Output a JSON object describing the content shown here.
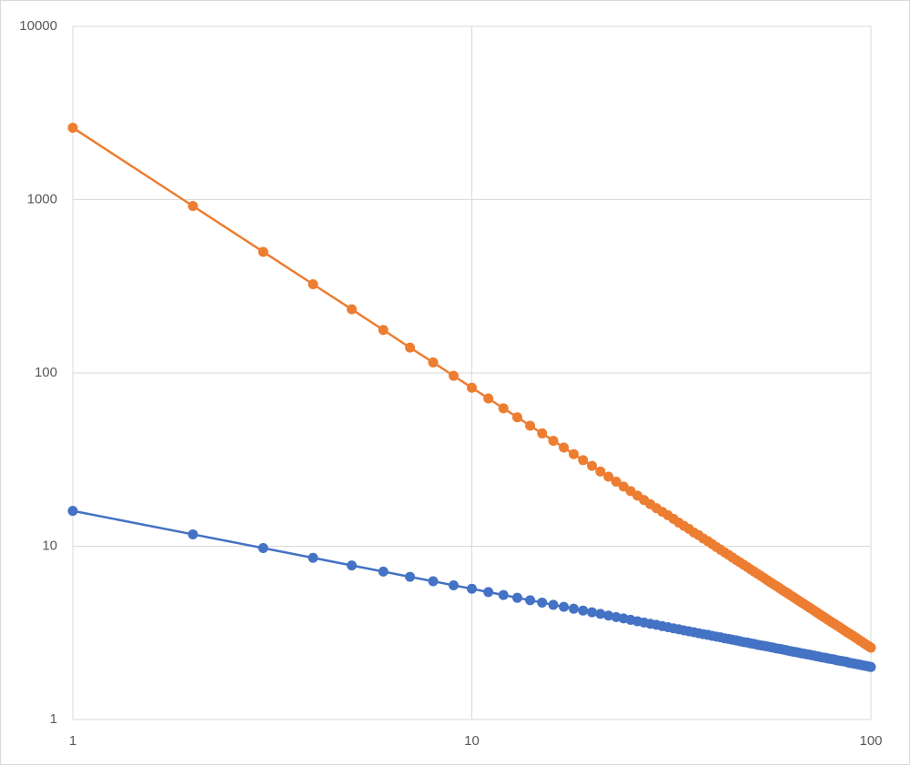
{
  "chart_data": {
    "type": "line",
    "xscale": "log",
    "yscale": "log",
    "grid": true,
    "markers": true,
    "xlim": [
      1,
      100
    ],
    "xticks": [
      1,
      10,
      100
    ],
    "ylim": [
      1,
      10000
    ],
    "yticks": [
      1,
      10,
      100,
      1000,
      10000
    ],
    "x": [
      1,
      2,
      3,
      4,
      5,
      6,
      7,
      8,
      9,
      10,
      11,
      12,
      13,
      14,
      15,
      16,
      17,
      18,
      19,
      20,
      21,
      22,
      23,
      24,
      25,
      26,
      27,
      28,
      29,
      30,
      31,
      32,
      33,
      34,
      35,
      36,
      37,
      38,
      39,
      40,
      41,
      42,
      43,
      44,
      45,
      46,
      47,
      48,
      49,
      50,
      51,
      52,
      53,
      54,
      55,
      56,
      57,
      58,
      59,
      60,
      61,
      62,
      63,
      64,
      65,
      66,
      67,
      68,
      69,
      70,
      71,
      72,
      73,
      74,
      75,
      76,
      77,
      78,
      79,
      80,
      81,
      82,
      83,
      84,
      85,
      86,
      87,
      88,
      89,
      90,
      91,
      92,
      93,
      94,
      95,
      96,
      97,
      98,
      99,
      100
    ],
    "series": [
      {
        "color": "#4472c4",
        "values": [
          16,
          11.71,
          9.76,
          8.57,
          7.75,
          7.14,
          6.66,
          6.28,
          5.95,
          5.68,
          5.44,
          5.23,
          5.04,
          4.88,
          4.73,
          4.59,
          4.47,
          4.36,
          4.25,
          4.16,
          4.07,
          3.98,
          3.9,
          3.83,
          3.76,
          3.69,
          3.63,
          3.57,
          3.52,
          3.46,
          3.41,
          3.36,
          3.32,
          3.27,
          3.23,
          3.19,
          3.15,
          3.11,
          3.08,
          3.04,
          3.01,
          2.98,
          2.94,
          2.92,
          2.89,
          2.86,
          2.83,
          2.8,
          2.78,
          2.75,
          2.73,
          2.7,
          2.68,
          2.66,
          2.64,
          2.62,
          2.6,
          2.57,
          2.56,
          2.54,
          2.52,
          2.5,
          2.48,
          2.46,
          2.45,
          2.43,
          2.41,
          2.4,
          2.38,
          2.37,
          2.35,
          2.34,
          2.32,
          2.31,
          2.29,
          2.28,
          2.27,
          2.25,
          2.24,
          2.23,
          2.22,
          2.2,
          2.19,
          2.18,
          2.17,
          2.16,
          2.15,
          2.13,
          2.12,
          2.11,
          2.1,
          2.09,
          2.08,
          2.07,
          2.06,
          2.05,
          2.04,
          2.03,
          2.02,
          2.01
        ]
      },
      {
        "color": "#ed7d31",
        "values": [
          2600,
          919,
          500,
          325,
          233,
          177,
          140,
          115,
          96.3,
          82.2,
          71.3,
          62.5,
          55.5,
          49.6,
          44.8,
          40.6,
          37.1,
          34.0,
          31.4,
          29.1,
          27.0,
          25.2,
          23.6,
          22.1,
          20.8,
          19.6,
          18.5,
          17.5,
          16.6,
          15.8,
          15.1,
          14.4,
          13.7,
          13.1,
          12.6,
          12.0,
          11.6,
          11.1,
          10.7,
          10.3,
          9.9,
          9.55,
          9.22,
          8.91,
          8.61,
          8.33,
          8.07,
          7.82,
          7.58,
          7.35,
          7.14,
          6.93,
          6.74,
          6.55,
          6.37,
          6.2,
          6.04,
          5.89,
          5.74,
          5.59,
          5.46,
          5.33,
          5.2,
          5.08,
          4.96,
          4.85,
          4.74,
          4.64,
          4.54,
          4.44,
          4.35,
          4.26,
          4.17,
          4.08,
          4.0,
          3.92,
          3.85,
          3.77,
          3.7,
          3.63,
          3.57,
          3.5,
          3.44,
          3.38,
          3.32,
          3.26,
          3.2,
          3.15,
          3.1,
          3.05,
          3.0,
          2.95,
          2.9,
          2.85,
          2.81,
          2.76,
          2.72,
          2.68,
          2.64,
          2.6
        ]
      }
    ]
  }
}
